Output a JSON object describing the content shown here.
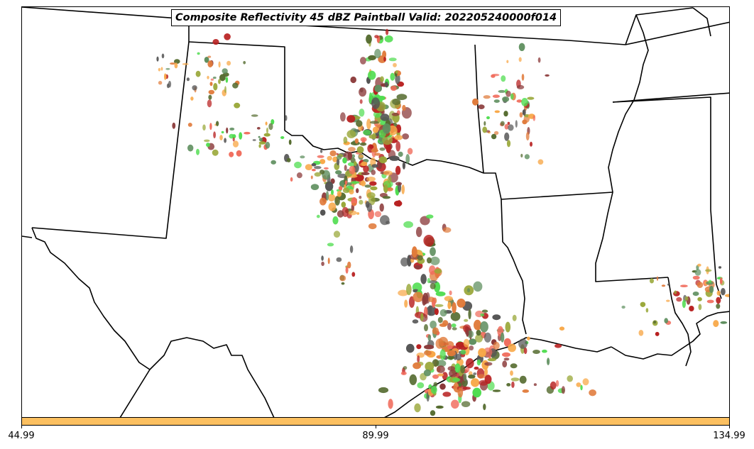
{
  "title": "Composite Reflectivity 45 dBZ Paintball Valid: 202205240000f014",
  "colorbar": {
    "color": "#fcc060",
    "ticks": [
      "44.99",
      "89.99",
      "134.99"
    ]
  },
  "colors": {
    "map_background": "#ffffff",
    "boundary": "#000000",
    "member_palette": [
      "#4fdd4f",
      "#f06a5a",
      "#f8a848",
      "#8b3a3a",
      "#556b2f",
      "#9aa83a",
      "#b82020",
      "#555555",
      "#5f8f5f",
      "#e07a3a"
    ]
  }
}
